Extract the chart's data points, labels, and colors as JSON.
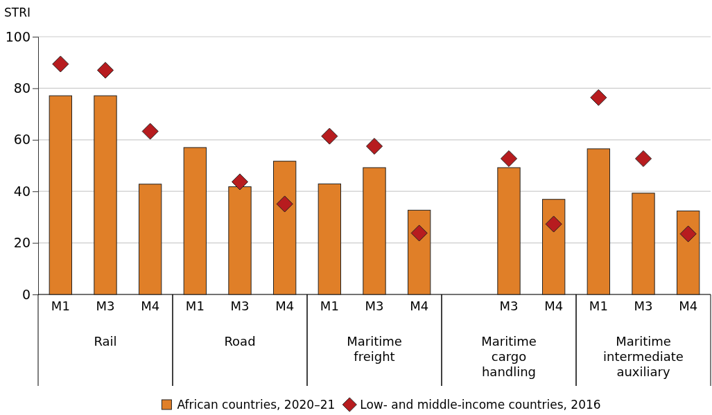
{
  "chart_data": {
    "type": "bar",
    "ylabel": "STRI",
    "categories": [
      "M1",
      "M3",
      "M4",
      "M1",
      "M3",
      "M4",
      "M1",
      "M3",
      "M4",
      null,
      "M3",
      "M4",
      "M1",
      "M3",
      "M4"
    ],
    "series": [
      {
        "name": "African countries, 2020–21",
        "color": "#e07f28",
        "values": [
          77.1,
          77.1,
          42.8,
          57.0,
          41.8,
          51.7,
          42.9,
          49.2,
          32.7,
          null,
          49.2,
          36.9,
          56.5,
          39.3,
          32.4
        ]
      },
      {
        "name": "Low- and middle-income countries, 2016",
        "type": "scatter",
        "marker": "diamond",
        "color": "#b71c1f",
        "values": [
          89.4,
          87.0,
          63.3,
          null,
          43.7,
          35.1,
          61.4,
          57.5,
          23.8,
          null,
          52.7,
          27.3,
          76.4,
          52.7,
          23.5
        ]
      }
    ],
    "ylim": [
      0,
      100
    ],
    "yticks": [
      0,
      20,
      40,
      60,
      80,
      100
    ],
    "grid": "y",
    "legend": "bottom",
    "annotations": [
      "Rail",
      "Road",
      "Maritime freight",
      "Maritime cargo handling",
      "Maritime intermediate auxiliary"
    ]
  }
}
